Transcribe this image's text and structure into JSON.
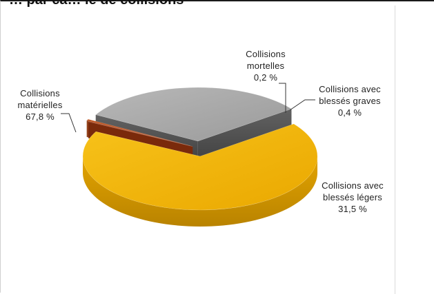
{
  "chart_data": {
    "type": "pie",
    "title": "… par ca… ie de collisions",
    "slices": [
      {
        "name": "Collisions matérielles",
        "label_lines": [
          "Collisions",
          "matérielles"
        ],
        "value": 67.8,
        "value_label": "67,8 %",
        "color": "#f2b400"
      },
      {
        "name": "Collisions mortelles",
        "label_lines": [
          "Collisions",
          "mortelles"
        ],
        "value": 0.2,
        "value_label": "0,2 %",
        "color": "#a33a12"
      },
      {
        "name": "Collisions avec blessés graves",
        "label_lines": [
          "Collisions avec",
          "blessés graves"
        ],
        "value": 0.4,
        "value_label": "0,4 %",
        "color": "#c0521c"
      },
      {
        "name": "Collisions avec blessés légers",
        "label_lines": [
          "Collisions avec",
          "blessés légers"
        ],
        "value": 31.5,
        "value_label": "31,5 %",
        "color": "#a8a8a8"
      }
    ],
    "legend": "none",
    "exploded": true,
    "style": "3d"
  }
}
